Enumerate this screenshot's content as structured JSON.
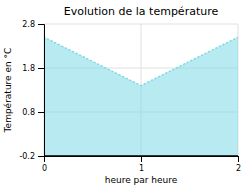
{
  "chart_data": {
    "type": "area",
    "title": "Evolution de la température",
    "xlabel": "heure par heure",
    "ylabel": "Température en °C",
    "x": [
      0,
      1,
      2
    ],
    "values": [
      2.5,
      1.4,
      2.5
    ],
    "baseline": -0.2,
    "color": "#7dd8e8",
    "line_style": "dotted",
    "xlim": [
      0,
      2
    ],
    "ylim": [
      -0.2,
      2.8
    ],
    "xticks": [
      0,
      1,
      2
    ],
    "yticks": [
      -0.2,
      0.8,
      1.8,
      2.8
    ],
    "grid": true
  }
}
